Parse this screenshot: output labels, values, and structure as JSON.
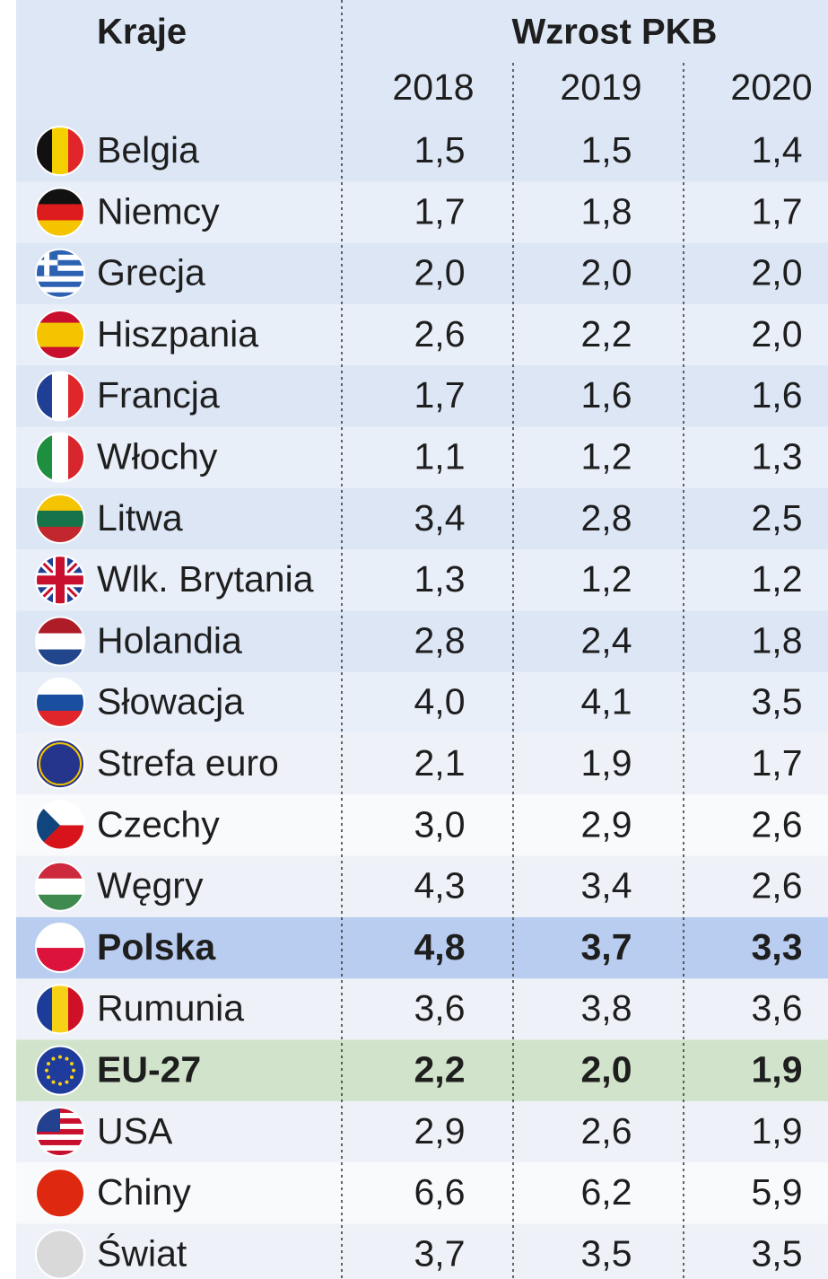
{
  "header": {
    "country_label": "Kraje",
    "group_label": "Wzrost PKB",
    "years": [
      "2018",
      "2019",
      "2020"
    ]
  },
  "rows": [
    {
      "name": "Belgia",
      "values": [
        "1,5",
        "1,5",
        "1,4"
      ]
    },
    {
      "name": "Niemcy",
      "values": [
        "1,7",
        "1,8",
        "1,7"
      ]
    },
    {
      "name": "Grecja",
      "values": [
        "2,0",
        "2,0",
        "2,0"
      ]
    },
    {
      "name": "Hiszpania",
      "values": [
        "2,6",
        "2,2",
        "2,0"
      ]
    },
    {
      "name": "Francja",
      "values": [
        "1,7",
        "1,6",
        "1,6"
      ]
    },
    {
      "name": "Włochy",
      "values": [
        "1,1",
        "1,2",
        "1,3"
      ]
    },
    {
      "name": "Litwa",
      "values": [
        "3,4",
        "2,8",
        "2,5"
      ]
    },
    {
      "name": "Wlk. Brytania",
      "values": [
        "1,3",
        "1,2",
        "1,2"
      ]
    },
    {
      "name": "Holandia",
      "values": [
        "2,8",
        "2,4",
        "1,8"
      ]
    },
    {
      "name": "Słowacja",
      "values": [
        "4,0",
        "4,1",
        "3,5"
      ]
    },
    {
      "name": "Strefa euro",
      "values": [
        "2,1",
        "1,9",
        "1,7"
      ]
    },
    {
      "name": "Czechy",
      "values": [
        "3,0",
        "2,9",
        "2,6"
      ]
    },
    {
      "name": "Węgry",
      "values": [
        "4,3",
        "3,4",
        "2,6"
      ]
    },
    {
      "name": "Polska",
      "values": [
        "4,8",
        "3,7",
        "3,3"
      ]
    },
    {
      "name": "Rumunia",
      "values": [
        "3,6",
        "3,8",
        "3,6"
      ]
    },
    {
      "name": "EU-27",
      "values": [
        "2,2",
        "2,0",
        "1,9"
      ]
    },
    {
      "name": "USA",
      "values": [
        "2,9",
        "2,6",
        "1,9"
      ]
    },
    {
      "name": "Chiny",
      "values": [
        "6,6",
        "6,2",
        "5,9"
      ]
    },
    {
      "name": "Świat",
      "values": [
        "3,7",
        "3,5",
        "3,5"
      ]
    }
  ]
}
